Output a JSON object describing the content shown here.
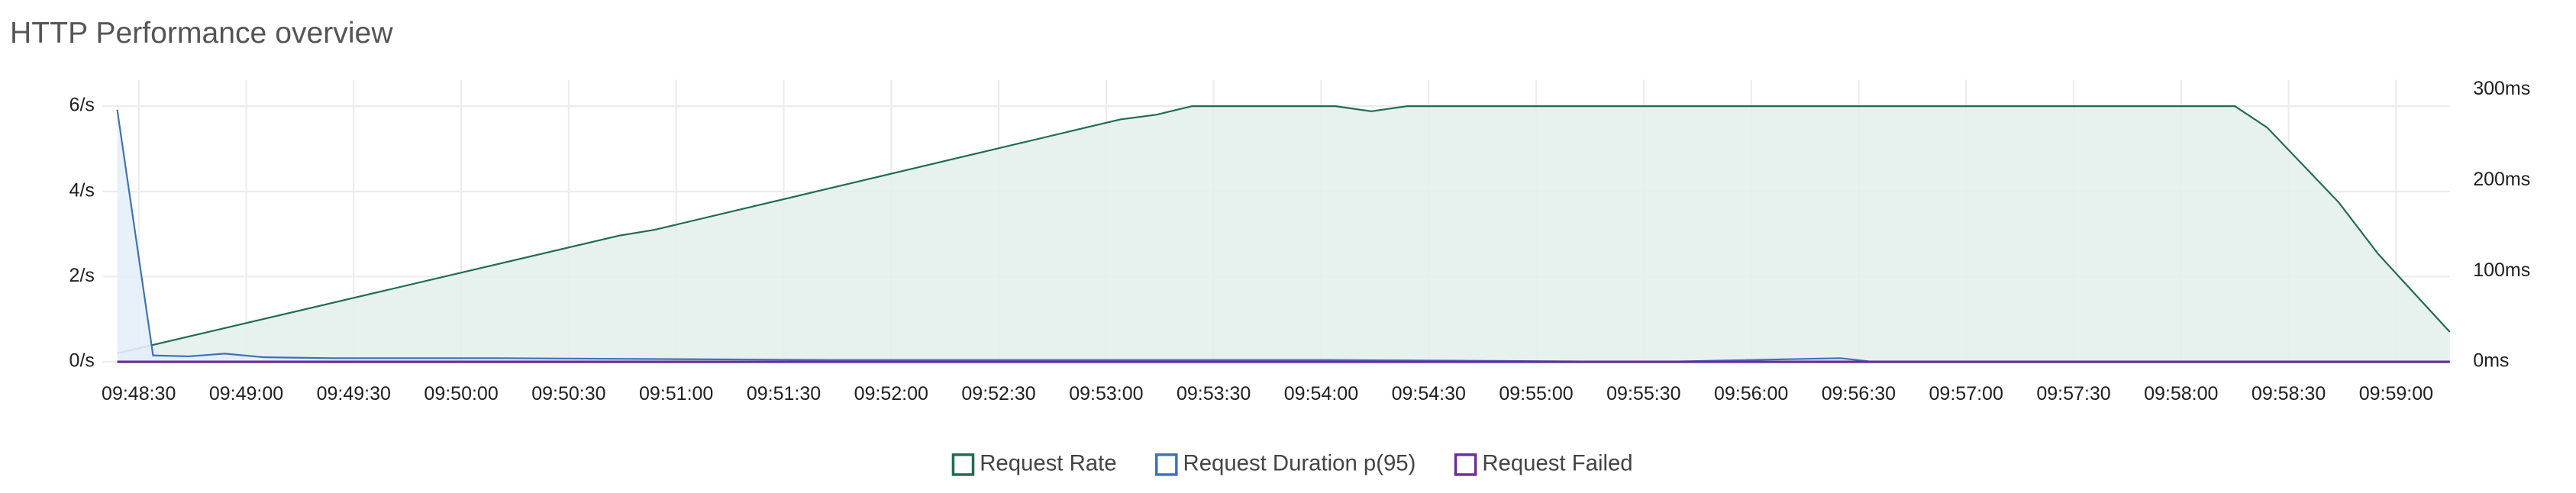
{
  "chart_data": {
    "type": "line",
    "title": "HTTP Performance overview",
    "xlim": [
      35300,
      35955
    ],
    "xticks": [
      {
        "value": 35310,
        "label": "09:48:30"
      },
      {
        "value": 35340,
        "label": "09:49:00"
      },
      {
        "value": 35370,
        "label": "09:49:30"
      },
      {
        "value": 35400,
        "label": "09:50:00"
      },
      {
        "value": 35430,
        "label": "09:50:30"
      },
      {
        "value": 35460,
        "label": "09:51:00"
      },
      {
        "value": 35490,
        "label": "09:51:30"
      },
      {
        "value": 35520,
        "label": "09:52:00"
      },
      {
        "value": 35550,
        "label": "09:52:30"
      },
      {
        "value": 35580,
        "label": "09:53:00"
      },
      {
        "value": 35610,
        "label": "09:53:30"
      },
      {
        "value": 35640,
        "label": "09:54:00"
      },
      {
        "value": 35670,
        "label": "09:54:30"
      },
      {
        "value": 35700,
        "label": "09:55:00"
      },
      {
        "value": 35730,
        "label": "09:55:30"
      },
      {
        "value": 35760,
        "label": "09:56:00"
      },
      {
        "value": 35790,
        "label": "09:56:30"
      },
      {
        "value": 35820,
        "label": "09:57:00"
      },
      {
        "value": 35850,
        "label": "09:57:30"
      },
      {
        "value": 35880,
        "label": "09:58:00"
      },
      {
        "value": 35910,
        "label": "09:58:30"
      },
      {
        "value": 35940,
        "label": "09:59:00"
      }
    ],
    "ylim": [
      0,
      6.62
    ],
    "yticks": [
      {
        "value": 0,
        "label": "0/s"
      },
      {
        "value": 2,
        "label": "2/s"
      },
      {
        "value": 4,
        "label": "4/s"
      },
      {
        "value": 6,
        "label": "6/s"
      }
    ],
    "y2lim": [
      0,
      311
    ],
    "y2ticks": [
      {
        "value": 0,
        "label": "0ms"
      },
      {
        "value": 100,
        "label": "100ms"
      },
      {
        "value": 200,
        "label": "200ms"
      },
      {
        "value": 300,
        "label": "300ms"
      }
    ],
    "grid": true,
    "legend": "bottom",
    "series": [
      {
        "name": "Request Rate",
        "color": "#1f6b52",
        "fill": "#e4f0ec",
        "x": [
          35304,
          35444,
          35454,
          35584,
          35594,
          35604,
          35644,
          35654,
          35664,
          35895,
          35904,
          35924,
          35935,
          35955
        ],
        "values": [
          0.2,
          2.96,
          3.1,
          5.69,
          5.8,
          6.0,
          6.0,
          5.88,
          6.0,
          6.0,
          5.5,
          3.74,
          2.53,
          0.7
        ]
      },
      {
        "name": "Request Duration p(95)",
        "color": "#3d71b8",
        "fill": "#e6eefa",
        "axis": "y2",
        "x": [
          35304,
          35314,
          35324,
          35334,
          35345,
          35364,
          35410,
          35503,
          35642,
          35734,
          35785,
          35794,
          35955
        ],
        "values": [
          278,
          7,
          6,
          9,
          5,
          4,
          4,
          2,
          2,
          0,
          4,
          0,
          0
        ]
      },
      {
        "name": "Request Failed",
        "color": "#6a2e9e",
        "x": [
          35304,
          35955
        ],
        "values": [
          0,
          0
        ]
      }
    ]
  }
}
